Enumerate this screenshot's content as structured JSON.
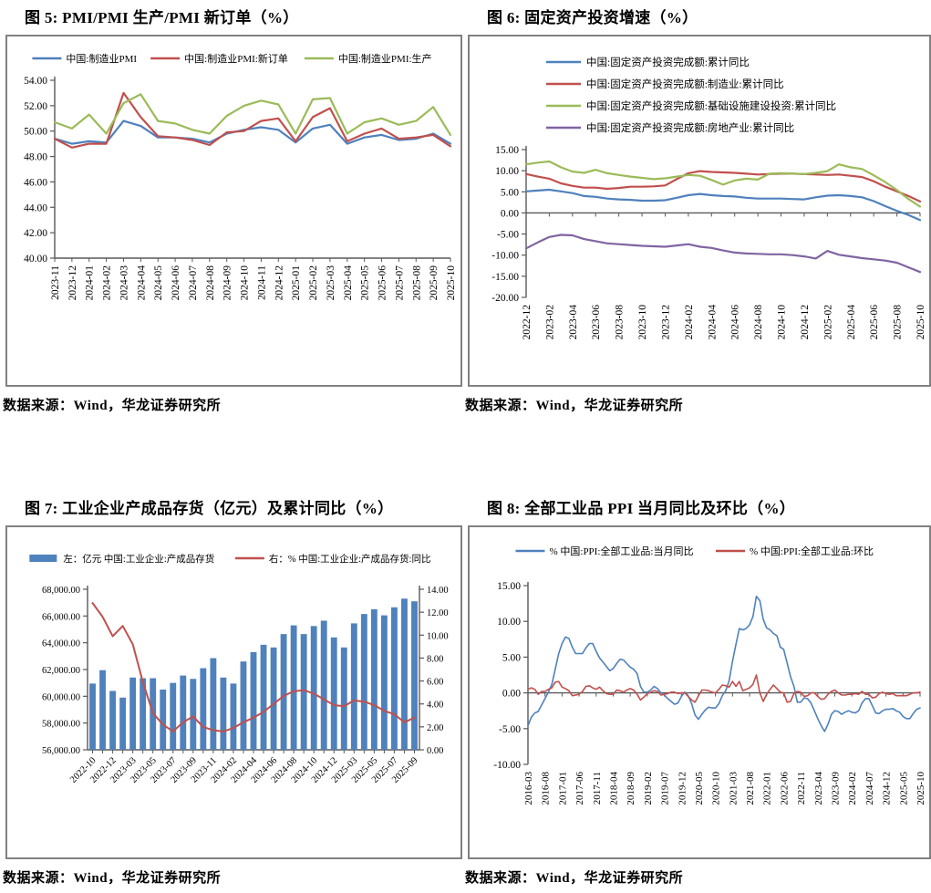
{
  "palette": {
    "blue": "#4F81BD",
    "red": "#C0504D",
    "green": "#9BBB59",
    "purple": "#8064A2",
    "axis": "#595959",
    "box_border": "#818181"
  },
  "figures": [
    {
      "title": "图 5: PMI/PMI 生产/PMI 新订单（%）",
      "source": "数据来源：Wind，华龙证券研究所",
      "chart_data": {
        "type": "line",
        "grid": false,
        "legend_position": "top-center-row",
        "ylim": [
          40,
          54
        ],
        "ystep": 2,
        "categories": [
          "2023-11",
          "2023-12",
          "2024-01",
          "2024-02",
          "2024-03",
          "2024-04",
          "2024-05",
          "2024-06",
          "2024-07",
          "2024-08",
          "2024-09",
          "2024-10",
          "2024-11",
          "2024-12",
          "2025-01",
          "2025-02",
          "2025-03",
          "2025-04",
          "2025-05",
          "2025-06",
          "2025-07",
          "2025-08",
          "2025-09",
          "2025-10"
        ],
        "series": [
          {
            "name": "中国:制造业PMI",
            "type": "line",
            "color": "#4F81BD",
            "values": [
              49.4,
              49.0,
              49.2,
              49.1,
              50.8,
              50.4,
              49.5,
              49.5,
              49.4,
              49.1,
              49.8,
              50.1,
              50.3,
              50.1,
              49.1,
              50.2,
              50.5,
              49.0,
              49.5,
              49.7,
              49.3,
              49.4,
              49.8,
              49.0
            ]
          },
          {
            "name": "中国:制造业PMI:新订单",
            "type": "line",
            "color": "#C0504D",
            "values": [
              49.4,
              48.7,
              49.0,
              49.0,
              53.0,
              51.1,
              49.6,
              49.5,
              49.3,
              48.9,
              49.9,
              50.0,
              50.8,
              51.0,
              49.2,
              51.1,
              51.8,
              49.2,
              49.8,
              50.2,
              49.4,
              49.5,
              49.7,
              48.8
            ]
          },
          {
            "name": "中国:制造业PMI:生产",
            "type": "line",
            "color": "#9BBB59",
            "values": [
              50.7,
              50.2,
              51.3,
              49.8,
              52.2,
              52.9,
              50.8,
              50.6,
              50.1,
              49.8,
              51.2,
              52.0,
              52.4,
              52.1,
              49.8,
              52.5,
              52.6,
              49.8,
              50.7,
              51.0,
              50.5,
              50.8,
              51.9,
              49.7
            ]
          }
        ]
      }
    },
    {
      "title": "图 6: 固定资产投资增速（%）",
      "source": "数据来源：Wind，华龙证券研究所",
      "chart_data": {
        "type": "line",
        "grid": false,
        "legend_position": "top-left-column",
        "zero_axis": true,
        "ylim": [
          -20,
          15
        ],
        "ystep": 5,
        "categories": [
          "2022-12",
          "2023-01",
          "2023-02",
          "2023-03",
          "2023-04",
          "2023-05",
          "2023-06",
          "2023-07",
          "2023-08",
          "2023-09",
          "2023-10",
          "2023-11",
          "2023-12",
          "2024-01",
          "2024-02",
          "2024-03",
          "2024-04",
          "2024-05",
          "2024-06",
          "2024-07",
          "2024-08",
          "2024-09",
          "2024-10",
          "2024-11",
          "2024-12",
          "2025-01",
          "2025-02",
          "2025-03",
          "2025-04",
          "2025-05",
          "2025-06",
          "2025-07",
          "2025-08",
          "2025-09",
          "2025-10"
        ],
        "series": [
          {
            "name": "中国:固定资产投资完成额:累计同比",
            "type": "line",
            "color": "#4F81BD",
            "values": [
              5.1,
              5.3,
              5.5,
              5.1,
              4.7,
              4.0,
              3.8,
              3.4,
              3.2,
              3.1,
              2.9,
              2.9,
              3.0,
              3.6,
              4.2,
              4.5,
              4.2,
              4.0,
              3.9,
              3.6,
              3.4,
              3.4,
              3.4,
              3.3,
              3.2,
              3.7,
              4.1,
              4.2,
              4.0,
              3.7,
              2.8,
              1.6,
              0.5,
              -0.5,
              -1.7
            ]
          },
          {
            "name": "中国:固定资产投资完成额:制造业:累计同比",
            "type": "line",
            "color": "#C0504D",
            "values": [
              9.2,
              8.6,
              8.1,
              7.0,
              6.4,
              6.0,
              6.0,
              5.7,
              5.9,
              6.2,
              6.2,
              6.3,
              6.5,
              8.0,
              9.4,
              9.9,
              9.7,
              9.6,
              9.5,
              9.3,
              9.1,
              9.2,
              9.3,
              9.3,
              9.2,
              9.1,
              9.0,
              9.1,
              8.8,
              8.5,
              7.5,
              6.2,
              5.1,
              4.0,
              2.7
            ]
          },
          {
            "name": "中国:固定资产投资完成额:基础设施建设投资:累计同比",
            "type": "line",
            "color": "#9BBB59",
            "values": [
              11.5,
              11.9,
              12.2,
              10.8,
              9.8,
              9.5,
              10.2,
              9.4,
              9.0,
              8.6,
              8.3,
              8.0,
              8.2,
              8.6,
              9.0,
              8.8,
              7.8,
              6.7,
              7.7,
              8.1,
              7.9,
              9.3,
              9.4,
              9.3,
              9.2,
              9.5,
              9.9,
              11.5,
              10.8,
              10.4,
              8.9,
              7.3,
              5.4,
              3.3,
              1.5
            ]
          },
          {
            "name": "中国:固定资产投资完成额:房地产业:累计同比",
            "type": "line",
            "color": "#8064A2",
            "values": [
              -8.4,
              -7.0,
              -5.7,
              -5.2,
              -5.3,
              -6.2,
              -6.7,
              -7.2,
              -7.4,
              -7.6,
              -7.8,
              -7.9,
              -8.0,
              -7.7,
              -7.4,
              -8.0,
              -8.3,
              -8.9,
              -9.4,
              -9.6,
              -9.7,
              -9.8,
              -9.8,
              -10.0,
              -10.3,
              -10.8,
              -9.0,
              -9.9,
              -10.3,
              -10.7,
              -11.0,
              -11.3,
              -11.8,
              -12.9,
              -14.0
            ]
          }
        ]
      }
    },
    {
      "title": "图 7: 工业企业产成品存货（亿元）及累计同比（%）",
      "source": "数据来源：Wind，华龙证券研究所",
      "chart_data": {
        "type": "bar",
        "grid": false,
        "legend_position": "top-center-row",
        "dual_axis": true,
        "ylim": [
          56000,
          68000
        ],
        "ystep": 2000,
        "y2lim": [
          0,
          14
        ],
        "y2step": 2,
        "categories": [
          "2022-10",
          "2022-11",
          "2022-12",
          "2023-02",
          "2023-03",
          "2023-04",
          "2023-05",
          "2023-06",
          "2023-07",
          "2023-08",
          "2023-09",
          "2023-10",
          "2023-11",
          "2023-12",
          "2024-02",
          "2024-03",
          "2024-04",
          "2024-05",
          "2024-06",
          "2024-07",
          "2024-08",
          "2024-09",
          "2024-10",
          "2024-11",
          "2024-12",
          "2025-02",
          "2025-03",
          "2025-04",
          "2025-05",
          "2025-06",
          "2025-07",
          "2025-08",
          "2025-09"
        ],
        "series": [
          {
            "name": "左：亿元 中国:工业企业:产成品存货",
            "type": "bar",
            "axis": "left",
            "color": "#4F81BD",
            "values": [
              60950,
              61950,
              60400,
              59900,
              61400,
              61350,
              61350,
              60500,
              61000,
              61550,
              61300,
              62100,
              62850,
              61400,
              60950,
              62600,
              63300,
              63850,
              63650,
              64650,
              65300,
              64650,
              65250,
              65650,
              64400,
              63650,
              65450,
              66150,
              66500,
              66050,
              66650,
              67300,
              67100
            ]
          },
          {
            "name": "右：% 中国:工业企业:产成品存货:同比",
            "type": "line",
            "axis": "right",
            "color": "#C0504D",
            "values": [
              12.8,
              11.6,
              9.9,
              10.8,
              9.2,
              5.9,
              3.2,
              2.2,
              1.6,
              2.4,
              2.9,
              2.0,
              1.7,
              1.6,
              1.9,
              2.4,
              2.8,
              3.3,
              4.0,
              4.7,
              5.1,
              5.2,
              4.9,
              4.4,
              3.9,
              3.8,
              4.3,
              4.2,
              3.9,
              3.4,
              3.1,
              2.4,
              2.8
            ]
          }
        ]
      }
    },
    {
      "title": "图 8: 全部工业品 PPI 当月同比及环比（%）",
      "source": "数据来源：Wind，华龙证券研究所",
      "chart_data": {
        "type": "line",
        "grid": false,
        "legend_position": "top-center-row",
        "zero_axis": true,
        "ylim": [
          -10,
          15
        ],
        "ystep": 5,
        "categories": [
          "2016-03",
          "2016-04",
          "2016-05",
          "2016-06",
          "2016-07",
          "2016-08",
          "2016-09",
          "2016-10",
          "2016-11",
          "2016-12",
          "2017-01",
          "2017-02",
          "2017-03",
          "2017-04",
          "2017-05",
          "2017-06",
          "2017-07",
          "2017-08",
          "2017-09",
          "2017-10",
          "2017-11",
          "2017-12",
          "2018-01",
          "2018-02",
          "2018-03",
          "2018-04",
          "2018-05",
          "2018-06",
          "2018-07",
          "2018-08",
          "2018-09",
          "2018-10",
          "2018-11",
          "2018-12",
          "2019-01",
          "2019-02",
          "2019-03",
          "2019-04",
          "2019-05",
          "2019-06",
          "2019-07",
          "2019-08",
          "2019-09",
          "2019-10",
          "2019-11",
          "2019-12",
          "2020-01",
          "2020-02",
          "2020-03",
          "2020-04",
          "2020-05",
          "2020-06",
          "2020-07",
          "2020-08",
          "2020-09",
          "2020-10",
          "2020-11",
          "2020-12",
          "2021-01",
          "2021-02",
          "2021-03",
          "2021-04",
          "2021-05",
          "2021-06",
          "2021-07",
          "2021-08",
          "2021-09",
          "2021-10",
          "2021-11",
          "2021-12",
          "2022-01",
          "2022-02",
          "2022-03",
          "2022-04",
          "2022-05",
          "2022-06",
          "2022-07",
          "2022-08",
          "2022-09",
          "2022-10",
          "2022-11",
          "2022-12",
          "2023-01",
          "2023-02",
          "2023-03",
          "2023-04",
          "2023-05",
          "2023-06",
          "2023-07",
          "2023-08",
          "2023-09",
          "2023-10",
          "2023-11",
          "2023-12",
          "2024-01",
          "2024-02",
          "2024-03",
          "2024-04",
          "2024-05",
          "2024-06",
          "2024-07",
          "2024-08",
          "2024-09",
          "2024-10",
          "2024-11",
          "2024-12",
          "2025-01",
          "2025-02",
          "2025-03",
          "2025-04",
          "2025-05",
          "2025-06",
          "2025-07",
          "2025-08",
          "2025-09",
          "2025-10"
        ],
        "series": [
          {
            "name": "% 中国:PPI:全部工业品:当月同比",
            "type": "line",
            "color": "#4F81BD",
            "values": [
              -4.6,
              -3.4,
              -2.8,
              -2.6,
              -1.7,
              -0.8,
              0.1,
              1.2,
              3.3,
              5.5,
              6.9,
              7.8,
              7.6,
              6.4,
              5.5,
              5.5,
              5.5,
              6.3,
              6.9,
              6.9,
              5.8,
              4.9,
              4.3,
              3.7,
              3.1,
              3.4,
              4.1,
              4.7,
              4.6,
              4.1,
              3.6,
              3.3,
              2.7,
              0.9,
              0.1,
              0.1,
              0.4,
              0.9,
              0.6,
              0.0,
              -0.3,
              -0.8,
              -1.2,
              -1.6,
              -1.4,
              -0.5,
              0.1,
              -0.4,
              -1.5,
              -3.1,
              -3.7,
              -3.0,
              -2.4,
              -2.0,
              -2.1,
              -2.1,
              -1.5,
              -0.4,
              0.3,
              1.7,
              4.4,
              6.8,
              9.0,
              8.8,
              9.0,
              9.5,
              10.7,
              13.5,
              12.9,
              10.3,
              9.1,
              8.8,
              8.3,
              8.0,
              6.4,
              6.1,
              4.2,
              2.3,
              0.9,
              -1.3,
              -1.3,
              -0.7,
              -0.8,
              -1.4,
              -2.5,
              -3.6,
              -4.6,
              -5.4,
              -4.4,
              -3.0,
              -2.5,
              -2.6,
              -3.0,
              -2.7,
              -2.5,
              -2.7,
              -2.8,
              -2.5,
              -1.4,
              -0.8,
              -0.8,
              -1.8,
              -2.8,
              -2.9,
              -2.5,
              -2.3,
              -2.3,
              -2.2,
              -2.5,
              -2.7,
              -3.3,
              -3.6,
              -3.6,
              -2.9,
              -2.3,
              -2.1
            ]
          },
          {
            "name": "% 中国:PPI:全部工业品:环比",
            "type": "line",
            "color": "#C0504D",
            "values": [
              0.5,
              0.7,
              0.5,
              -0.2,
              0.2,
              0.2,
              0.5,
              0.7,
              1.5,
              1.6,
              0.8,
              0.6,
              0.3,
              -0.4,
              -0.3,
              -0.2,
              0.2,
              0.9,
              1.0,
              0.7,
              0.5,
              0.8,
              0.3,
              -0.1,
              -0.2,
              -0.2,
              0.4,
              0.3,
              0.1,
              0.4,
              0.6,
              0.4,
              -0.2,
              -1.0,
              -0.6,
              -0.1,
              0.1,
              0.3,
              0.2,
              -0.3,
              -0.2,
              -0.1,
              0.1,
              0.1,
              -0.1,
              0.0,
              0.0,
              -0.5,
              -1.0,
              -1.3,
              -0.4,
              0.4,
              0.4,
              0.3,
              0.1,
              0.0,
              0.5,
              1.1,
              1.0,
              0.8,
              1.6,
              0.9,
              1.6,
              0.3,
              0.5,
              0.7,
              1.2,
              2.5,
              0.0,
              -1.2,
              -0.2,
              0.5,
              1.1,
              0.6,
              0.1,
              0.0,
              -1.3,
              -1.2,
              -0.1,
              0.2,
              0.1,
              -0.5,
              -0.4,
              0.0,
              0.0,
              -0.5,
              -0.9,
              -0.8,
              -0.2,
              0.2,
              0.4,
              0.0,
              -0.3,
              -0.3,
              -0.2,
              -0.2,
              -0.1,
              -0.2,
              0.2,
              -0.2,
              -0.2,
              -0.7,
              -0.6,
              -0.1,
              0.1,
              -0.1,
              -0.2,
              -0.1,
              -0.4,
              -0.4,
              -0.4,
              -0.4,
              -0.2,
              0.0,
              0.0,
              0.1
            ]
          }
        ]
      }
    }
  ]
}
